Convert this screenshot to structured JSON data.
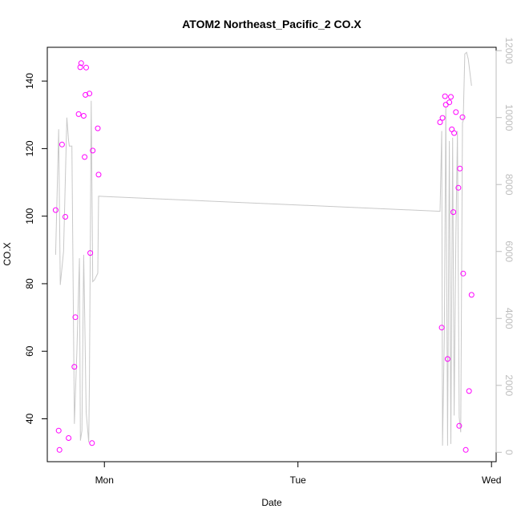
{
  "chart_data": {
    "type": "scatter",
    "title": "ATOM2 Northeast_Pacific_2 CO.X",
    "xlabel": "Date",
    "ylabel": "CO.X",
    "x_ticks": [
      "Mon",
      "Tue",
      "Wed"
    ],
    "y_ticks": [
      40,
      60,
      80,
      100,
      120,
      140
    ],
    "y2_ticks": [
      0,
      2000,
      4000,
      6000,
      8000,
      10000,
      12000
    ],
    "xlim": [
      -0.295,
      2.024
    ],
    "ylim": [
      27.3,
      150.0
    ],
    "y2lim": [
      -280,
      12100
    ],
    "grid": false,
    "colors": {
      "points": "#ff00ff",
      "line": "#c8c8c8",
      "axis": "#000000",
      "right_axis": "#bdbdbd"
    },
    "series": [
      {
        "kind": "points",
        "x": [
          -0.252,
          -0.236,
          -0.232,
          -0.219,
          -0.202,
          -0.185,
          -0.155,
          -0.15,
          -0.133,
          -0.125,
          -0.12,
          -0.107,
          -0.102,
          -0.098,
          -0.094,
          -0.077,
          -0.073,
          -0.064,
          -0.06,
          -0.034,
          -0.03,
          1.734,
          1.743,
          1.747,
          1.76,
          1.764,
          1.773,
          1.782,
          1.79,
          1.795,
          1.803,
          1.807,
          1.816,
          1.829,
          1.833,
          1.837,
          1.85,
          1.854,
          1.867,
          1.884,
          1.897
        ],
        "y": [
          101.8,
          36.5,
          30.8,
          121.2,
          99.8,
          34.3,
          55.4,
          70.1,
          130.2,
          144.1,
          145.3,
          129.7,
          117.5,
          135.9,
          144.0,
          136.3,
          89.1,
          32.8,
          119.4,
          126.0,
          112.3,
          127.8,
          67.0,
          129.1,
          135.5,
          133.0,
          57.7,
          133.7,
          135.3,
          125.7,
          101.2,
          124.6,
          130.8,
          108.4,
          37.9,
          114.1,
          129.3,
          83.0,
          30.8,
          48.2,
          76.7
        ]
      },
      {
        "kind": "line",
        "axis": "right",
        "x": [
          -0.252,
          -0.236,
          -0.228,
          -0.211,
          -0.194,
          -0.185,
          -0.181,
          -0.168,
          -0.155,
          -0.142,
          -0.129,
          -0.124,
          -0.116,
          -0.107,
          -0.102,
          -0.094,
          -0.081,
          -0.077,
          -0.068,
          -0.06,
          -0.051,
          -0.034,
          -0.03,
          1.734,
          1.743,
          1.747,
          1.756,
          1.764,
          1.773,
          1.782,
          1.79,
          1.799,
          1.807,
          1.816,
          1.824,
          1.833,
          1.841,
          1.85,
          1.854,
          1.862,
          1.871,
          1.88,
          1.897
        ],
        "y": [
          5900,
          9650,
          5000,
          6000,
          10000,
          9300,
          9150,
          9150,
          850,
          3000,
          5800,
          350,
          650,
          5900,
          4200,
          1200,
          300,
          2200,
          10500,
          5100,
          5150,
          5350,
          7650,
          7200,
          9600,
          200,
          3400,
          10300,
          200,
          9300,
          250,
          9400,
          1100,
          6500,
          9600,
          1050,
          600,
          9850,
          9900,
          11900,
          11950,
          11750,
          10950
        ]
      }
    ]
  }
}
